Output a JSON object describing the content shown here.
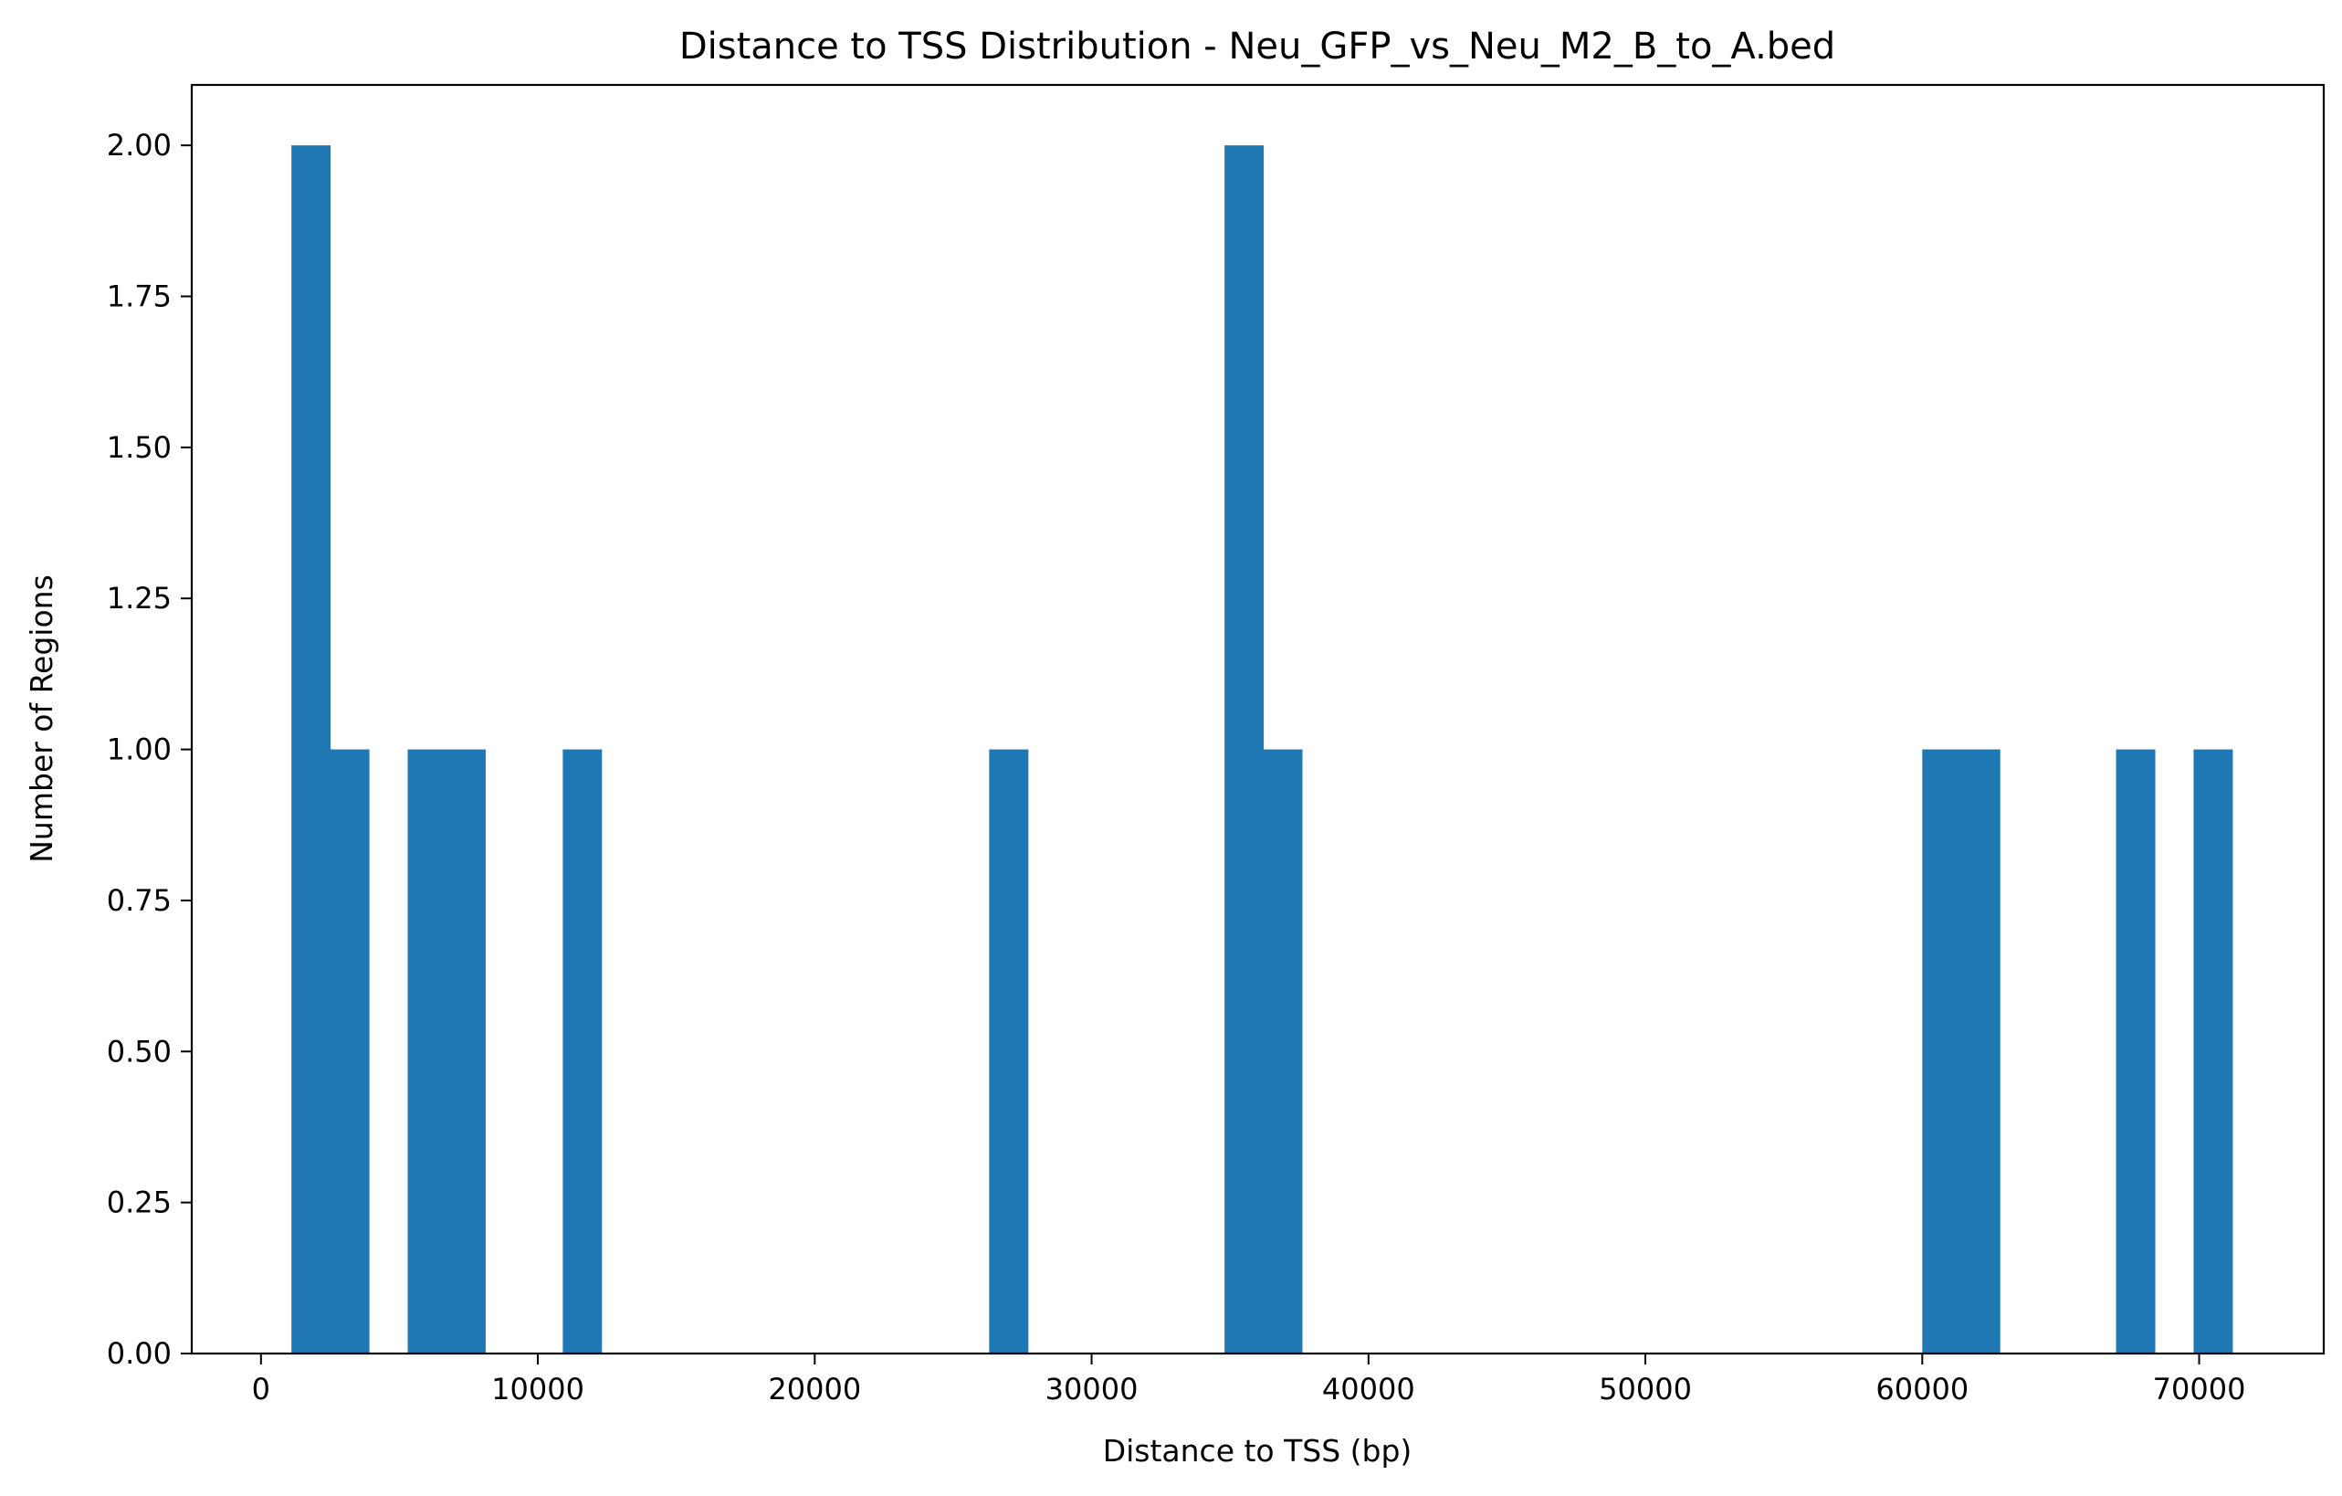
{
  "chart_data": {
    "type": "bar",
    "title": "Distance to TSS Distribution - Neu_GFP_vs_Neu_M2_B_to_A.bed",
    "xlabel": "Distance to TSS (bp)",
    "ylabel": "Number of Regions",
    "xlim": [
      -2500,
      74500
    ],
    "ylim": [
      0,
      2.1
    ],
    "xticks": [
      0,
      10000,
      20000,
      30000,
      40000,
      50000,
      60000,
      70000
    ],
    "yticks": [
      "0.00",
      "0.25",
      "0.50",
      "0.75",
      "1.00",
      "1.25",
      "1.50",
      "1.75",
      "2.00"
    ],
    "bar_color": "#1f77b4",
    "grid": false,
    "bins": [
      {
        "x0": 1100,
        "x1": 2500,
        "count": 2
      },
      {
        "x0": 2500,
        "x1": 3900,
        "count": 1
      },
      {
        "x0": 5300,
        "x1": 6700,
        "count": 1
      },
      {
        "x0": 6700,
        "x1": 8100,
        "count": 1
      },
      {
        "x0": 10900,
        "x1": 12300,
        "count": 1
      },
      {
        "x0": 26300,
        "x1": 27700,
        "count": 1
      },
      {
        "x0": 34800,
        "x1": 36200,
        "count": 2
      },
      {
        "x0": 36200,
        "x1": 37600,
        "count": 1
      },
      {
        "x0": 60000,
        "x1": 61400,
        "count": 1
      },
      {
        "x0": 61400,
        "x1": 62800,
        "count": 1
      },
      {
        "x0": 67000,
        "x1": 68400,
        "count": 1
      },
      {
        "x0": 69800,
        "x1": 71200,
        "count": 1
      }
    ]
  }
}
